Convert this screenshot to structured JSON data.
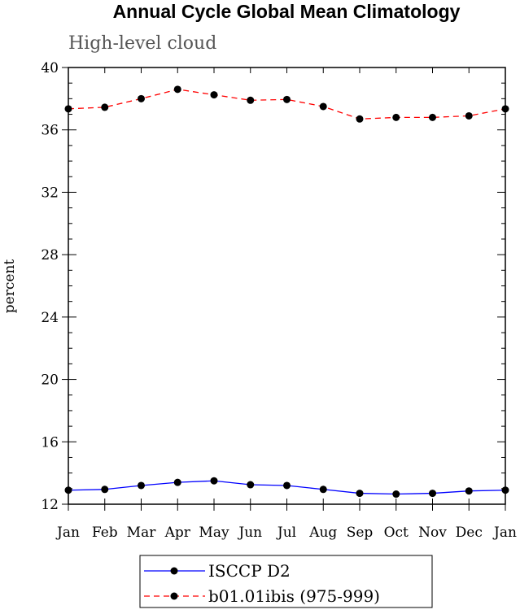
{
  "chart_data": {
    "type": "line",
    "title": "Annual Cycle Global Mean Climatology",
    "subtitle": "High-level cloud",
    "xlabel": "",
    "ylabel": "percent",
    "categories": [
      "Jan",
      "Feb",
      "Mar",
      "Apr",
      "May",
      "Jun",
      "Jul",
      "Aug",
      "Sep",
      "Oct",
      "Nov",
      "Dec",
      "Jan"
    ],
    "ylim": [
      12,
      40
    ],
    "yticks": [
      12,
      16,
      20,
      24,
      28,
      32,
      36,
      40
    ],
    "grid": false,
    "legend_position": "bottom-center",
    "series": [
      {
        "name": "ISCCP D2",
        "color": "#0000ff",
        "dash": "solid",
        "marker": "circle",
        "values": [
          12.9,
          12.95,
          13.2,
          13.4,
          13.5,
          13.25,
          13.2,
          12.95,
          12.7,
          12.65,
          12.7,
          12.85,
          12.9
        ]
      },
      {
        "name": "b01.01ibis (975-999)",
        "color": "#ff0000",
        "dash": "dashed",
        "marker": "circle",
        "values": [
          37.35,
          37.45,
          38.0,
          38.6,
          38.25,
          37.9,
          37.95,
          37.5,
          36.7,
          36.8,
          36.8,
          36.9,
          37.35
        ]
      }
    ]
  }
}
